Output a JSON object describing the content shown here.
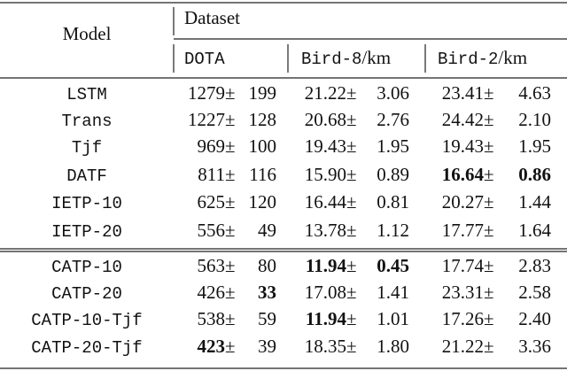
{
  "table": {
    "header": {
      "model": "Model",
      "group": "Dataset",
      "columns": [
        {
          "name": "DOTA"
        },
        {
          "name": "Bird-8",
          "unit": "/km"
        },
        {
          "name": "Bird-2",
          "unit": "/km"
        }
      ]
    },
    "separator": "±",
    "highlight_color": "#f28a1e",
    "groups": [
      [
        {
          "model": "LSTM",
          "cells": [
            {
              "mean": "1279",
              "std": "199"
            },
            {
              "mean": "21.22",
              "std": "3.06"
            },
            {
              "mean": "23.41",
              "std": "4.63"
            }
          ]
        },
        {
          "model": "Trans",
          "cells": [
            {
              "mean": "1227",
              "std": "128"
            },
            {
              "mean": "20.68",
              "std": "2.76"
            },
            {
              "mean": "24.42",
              "std": "2.10"
            }
          ]
        },
        {
          "model": "Tjf",
          "cells": [
            {
              "mean": "969",
              "std": "100"
            },
            {
              "mean": "19.43",
              "std": "1.95"
            },
            {
              "mean": "19.43",
              "std": "1.95"
            }
          ]
        },
        {
          "model": "DATF",
          "cells": [
            {
              "mean": "811",
              "std": "116"
            },
            {
              "mean": "15.90",
              "std": "0.89"
            },
            {
              "mean": "16.64",
              "std": "0.86",
              "bold": [
                "mean",
                "std"
              ]
            }
          ]
        },
        {
          "model": "IETP-10",
          "cells": [
            {
              "mean": "625",
              "std": "120"
            },
            {
              "mean": "16.44",
              "std": "0.81"
            },
            {
              "mean": "20.27",
              "std": "1.44"
            }
          ]
        },
        {
          "model": "IETP-20",
          "cells": [
            {
              "mean": "556",
              "std": "49"
            },
            {
              "mean": "13.78",
              "std": "1.12"
            },
            {
              "mean": "17.77",
              "std": "1.64"
            }
          ]
        }
      ],
      [
        {
          "model": "CATP-10",
          "cells": [
            {
              "mean": "563",
              "std": "80"
            },
            {
              "mean": "11.94",
              "std": "0.45",
              "bold": [
                "mean",
                "std"
              ]
            },
            {
              "mean": "17.74",
              "std": "2.83"
            }
          ]
        },
        {
          "model": "CATP-20",
          "cells": [
            {
              "mean": "426",
              "std": "33",
              "bold": [
                "std"
              ]
            },
            {
              "mean": "17.08",
              "std": "1.41"
            },
            {
              "mean": "23.31",
              "std": "2.58"
            }
          ]
        },
        {
          "model": "CATP-10-Tjf",
          "cells": [
            {
              "mean": "538",
              "std": "59"
            },
            {
              "mean": "11.94",
              "std": "1.01",
              "bold": [
                "mean"
              ]
            },
            {
              "mean": "17.26",
              "std": "2.40"
            }
          ]
        },
        {
          "model": "CATP-20-Tjf",
          "cells": [
            {
              "mean": "423",
              "std": "39",
              "bold": [
                "mean"
              ]
            },
            {
              "mean": "18.35",
              "std": "1.80"
            },
            {
              "mean": "21.22",
              "std": "3.36"
            }
          ]
        }
      ]
    ]
  }
}
